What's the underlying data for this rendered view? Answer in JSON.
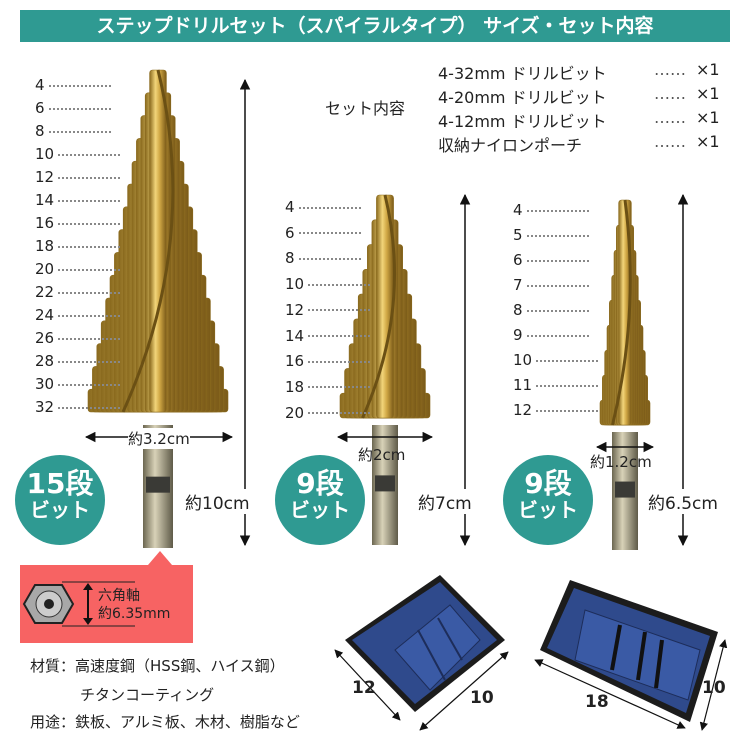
{
  "header": {
    "title": "ステップドリルセット（スパイラルタイプ） サイズ・セット内容"
  },
  "set_contents": {
    "label": "セット内容",
    "items": [
      {
        "name": "4-32mm ドリルビット",
        "dots": "……",
        "qty": "×1"
      },
      {
        "name": "4-20mm ドリルビット",
        "dots": "……",
        "qty": "×1"
      },
      {
        "name": "4-12mm ドリルビット",
        "dots": "……",
        "qty": "×1"
      },
      {
        "name": "収納ナイロンポーチ",
        "dots": "……",
        "qty": "×1"
      }
    ]
  },
  "bits": [
    {
      "sizes": [
        "4",
        "6",
        "8",
        "10",
        "12",
        "14",
        "16",
        "18",
        "20",
        "22",
        "24",
        "26",
        "28",
        "30",
        "32"
      ],
      "diameter": "約3.2cm",
      "length": "約10cm",
      "steps": "15段",
      "steps_sub": "ビット"
    },
    {
      "sizes": [
        "4",
        "6",
        "8",
        "10",
        "12",
        "14",
        "16",
        "18",
        "20"
      ],
      "diameter": "約2cm",
      "length": "約7cm",
      "steps": "9段",
      "steps_sub": "ビット"
    },
    {
      "sizes": [
        "4",
        "5",
        "6",
        "7",
        "8",
        "9",
        "10",
        "11",
        "12"
      ],
      "diameter": "約1.2cm",
      "length": "約6.5cm",
      "steps": "9段",
      "steps_sub": "ビット"
    }
  ],
  "shank": {
    "label": "六角軸",
    "size": "約6.35mm"
  },
  "specs": {
    "material_label": "材質：",
    "material": "高速度鋼（HSS鋼、ハイス鋼）",
    "coating": "チタンコーティング",
    "use_label": "用途：",
    "use": "鉄板、アルミ板、木材、樹脂など"
  },
  "pouches": [
    {
      "width": "12",
      "height": "10"
    },
    {
      "width": "18",
      "height": "10"
    }
  ],
  "colors": {
    "accent": "#2f9a92",
    "callout": "#f76363",
    "gold": "#d8b24a",
    "pouch": "#2f4a8c"
  }
}
